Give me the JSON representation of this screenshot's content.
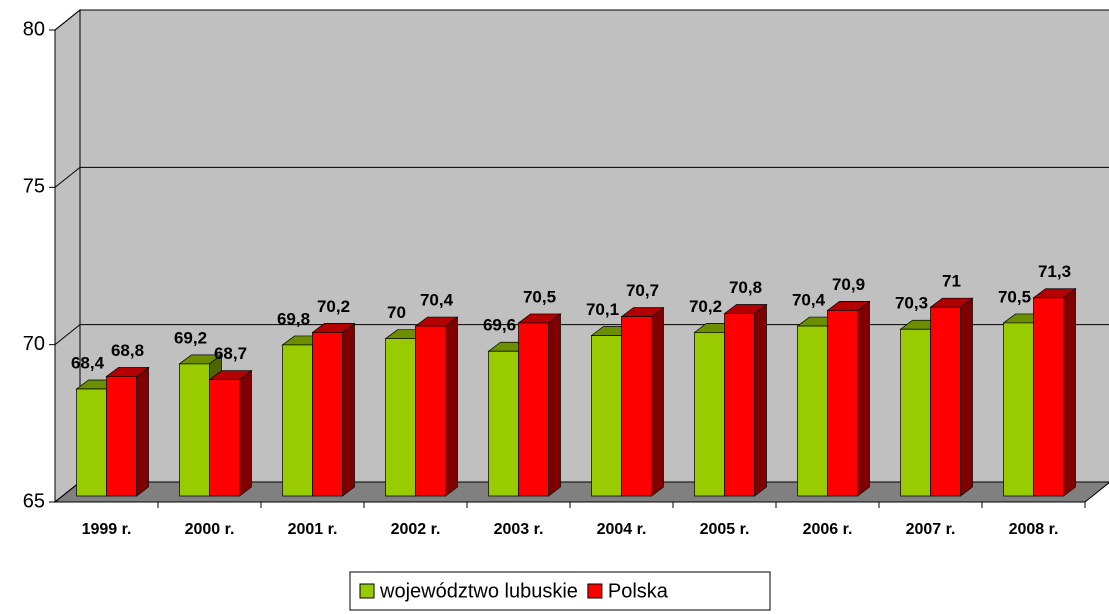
{
  "chart_data": {
    "type": "bar3d",
    "categories": [
      "1999 r.",
      "2000 r.",
      "2001 r.",
      "2002 r.",
      "2003 r.",
      "2004 r.",
      "2005 r.",
      "2006 r.",
      "2007 r.",
      "2008 r."
    ],
    "series": [
      {
        "name": "województwo lubuskie",
        "color": "#99cc00",
        "values": [
          68.4,
          69.2,
          69.8,
          70,
          69.6,
          70.1,
          70.2,
          70.4,
          70.3,
          70.5
        ],
        "value_labels": [
          "68,4",
          "69,2",
          "69,8",
          "70",
          "69,6",
          "70,1",
          "70,2",
          "70,4",
          "70,3",
          "70,5"
        ]
      },
      {
        "name": "Polska",
        "color": "#ff0000",
        "values": [
          68.8,
          68.7,
          70.2,
          70.4,
          70.5,
          70.7,
          70.8,
          70.9,
          71,
          71.3
        ],
        "value_labels": [
          "68,8",
          "68,7",
          "70,2",
          "70,4",
          "70,5",
          "70,7",
          "70,8",
          "70,9",
          "71",
          "71,3"
        ]
      }
    ],
    "ylim": [
      65,
      80
    ],
    "yticks": [
      65,
      70,
      75,
      80
    ],
    "grid": true,
    "legend": "bottom"
  }
}
